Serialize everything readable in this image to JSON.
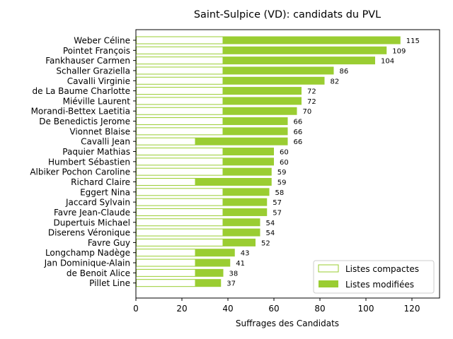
{
  "chart_data": {
    "type": "bar",
    "orientation": "horizontal",
    "stacked": true,
    "title": "Saint-Sulpice (VD): candidats du PVL",
    "xlabel": "Suffrages des Candidats",
    "ylabel": "",
    "xlim": [
      0,
      132
    ],
    "xticks": [
      0,
      20,
      40,
      60,
      80,
      100,
      120
    ],
    "grid": false,
    "legend_position": "lower-right",
    "categories": [
      "Weber Céline",
      "Pointet François",
      "Fankhauser Carmen",
      "Schaller Graziella",
      "Cavalli Virginie",
      "de La Baume Charlotte",
      "Miéville Laurent",
      "Morandi-Bettex Laetitia",
      "De Benedictis Jerome",
      "Vionnet Blaise",
      "Cavalli Jean",
      "Paquier Mathias",
      "Humbert Sébastien",
      "Albiker Pochon Caroline",
      "Richard Claire",
      "Eggert Nina",
      "Jaccard Sylvain",
      "Favre Jean-Claude",
      "Dupertuis Michael",
      "Diserens Véronique",
      "Favre Guy",
      "Longchamp Nadège",
      "Jan Dominique-Alain",
      "de Benoit Alice",
      "Pillet Line"
    ],
    "totals": [
      115,
      109,
      104,
      86,
      82,
      72,
      72,
      70,
      66,
      66,
      66,
      60,
      60,
      59,
      59,
      58,
      57,
      57,
      54,
      54,
      52,
      43,
      41,
      38,
      37
    ],
    "series": [
      {
        "name": "Listes compactes",
        "color": "#9acd32",
        "style": "outline",
        "values": [
          38,
          38,
          38,
          38,
          38,
          38,
          38,
          38,
          38,
          38,
          26,
          38,
          38,
          38,
          26,
          38,
          38,
          38,
          38,
          38,
          38,
          26,
          26,
          26,
          26
        ]
      },
      {
        "name": "Listes modifiées",
        "color": "#9acd32",
        "style": "filled",
        "values": [
          77,
          71,
          66,
          48,
          44,
          34,
          34,
          32,
          28,
          28,
          40,
          22,
          22,
          21,
          33,
          20,
          19,
          19,
          16,
          16,
          14,
          17,
          15,
          12,
          11
        ]
      }
    ]
  }
}
